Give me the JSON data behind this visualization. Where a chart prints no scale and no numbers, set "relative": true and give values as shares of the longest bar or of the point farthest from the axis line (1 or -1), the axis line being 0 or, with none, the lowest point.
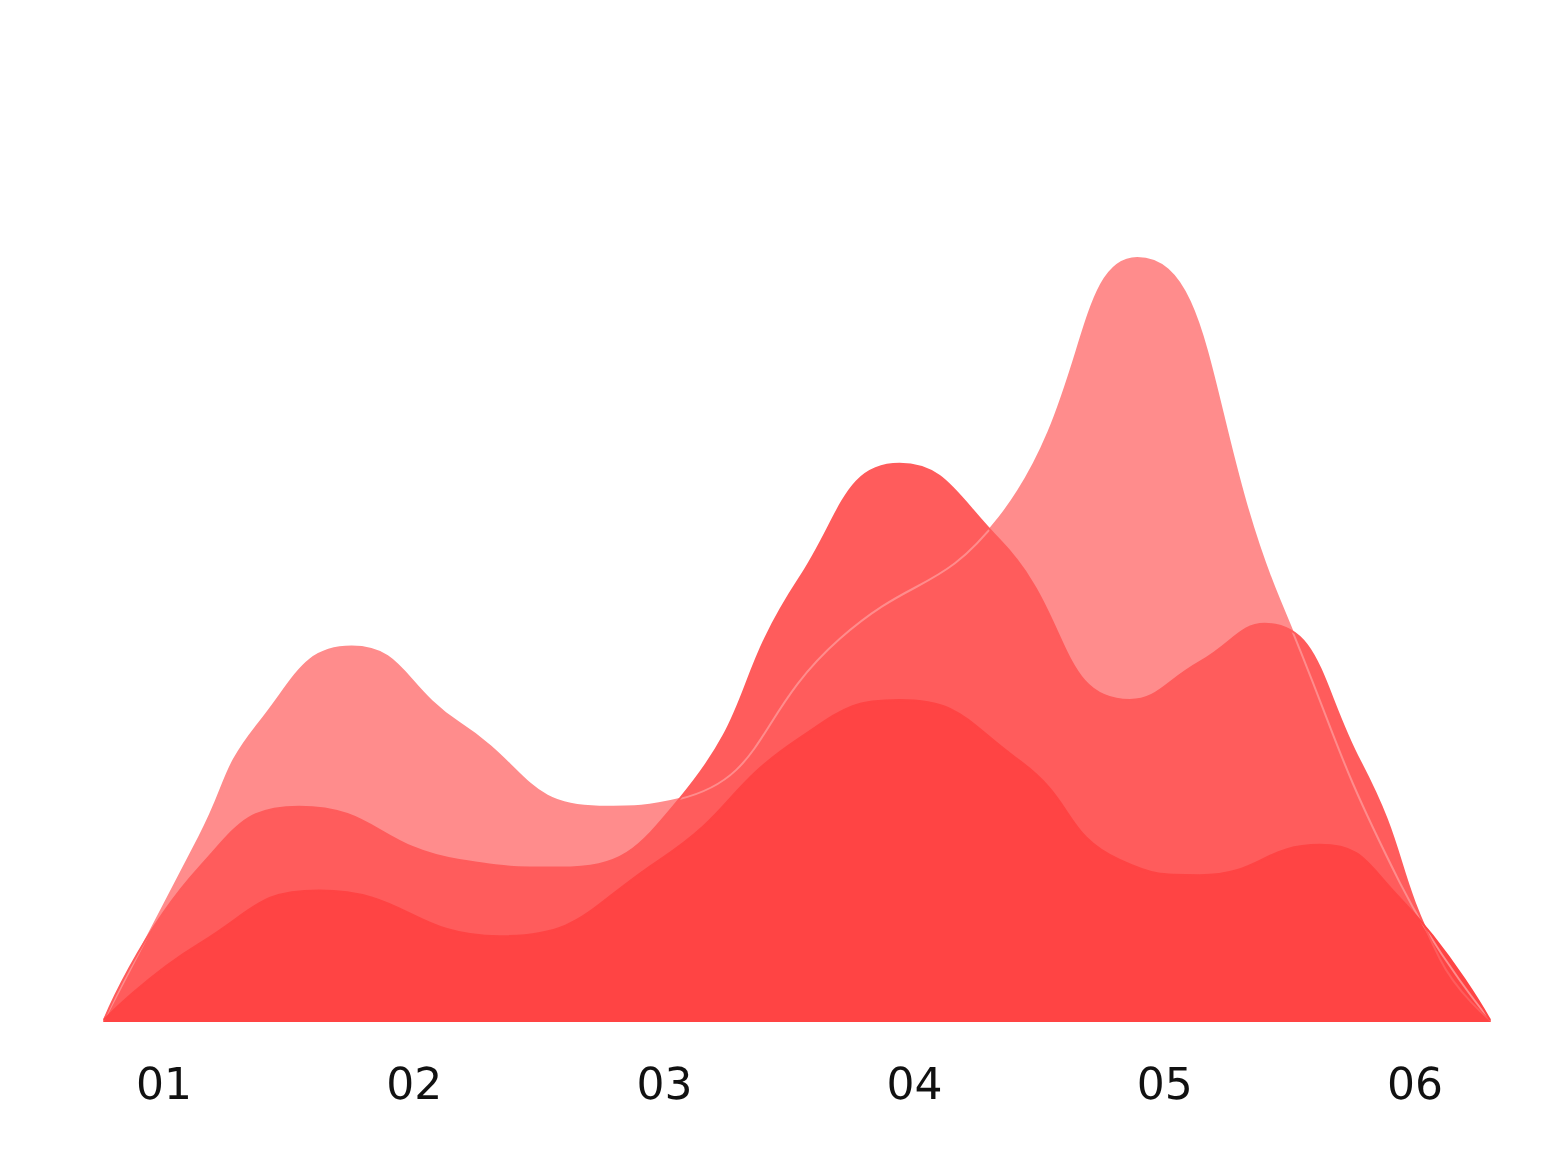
{
  "chart_data": {
    "type": "area",
    "relative": true,
    "xlim": [
      0.76,
      6.3
    ],
    "xticks": [
      {
        "value": 1,
        "label": "01"
      },
      {
        "value": 2,
        "label": "02"
      },
      {
        "value": 3,
        "label": "03"
      },
      {
        "value": 4,
        "label": "04"
      },
      {
        "value": 5,
        "label": "05"
      },
      {
        "value": 6,
        "label": "06"
      }
    ],
    "tick_labels": "x",
    "grid": false,
    "marker": "none",
    "series": [
      {
        "color": "#ff8c8c",
        "x": [
          0.76,
          1.14,
          1.38,
          1.75,
          2.18,
          2.74,
          3.06,
          3.7,
          4.34,
          4.89,
          5.46,
          5.94,
          6.3
        ],
        "values": [
          0,
          0.24,
          0.39,
          0.49,
          0.39,
          0.28,
          0.29,
          0.5,
          0.66,
          1.0,
          0.55,
          0.18,
          0
        ]
      },
      {
        "color": "#ff5c5c",
        "x": [
          0.76,
          1.14,
          1.54,
          2.18,
          2.58,
          3.06,
          3.54,
          3.94,
          4.34,
          4.86,
          5.14,
          5.4,
          5.78,
          6.1,
          6.3
        ],
        "values": [
          0,
          0.2,
          0.28,
          0.21,
          0.2,
          0.29,
          0.58,
          0.73,
          0.63,
          0.42,
          0.47,
          0.52,
          0.34,
          0.08,
          0
        ]
      },
      {
        "color": "#ff4444",
        "x": [
          0.76,
          1.14,
          1.62,
          2.34,
          2.98,
          3.54,
          3.94,
          4.42,
          4.82,
          5.14,
          5.62,
          5.94,
          6.3
        ],
        "values": [
          0,
          0.1,
          0.17,
          0.11,
          0.21,
          0.37,
          0.42,
          0.34,
          0.21,
          0.19,
          0.23,
          0.16,
          0
        ]
      }
    ]
  }
}
